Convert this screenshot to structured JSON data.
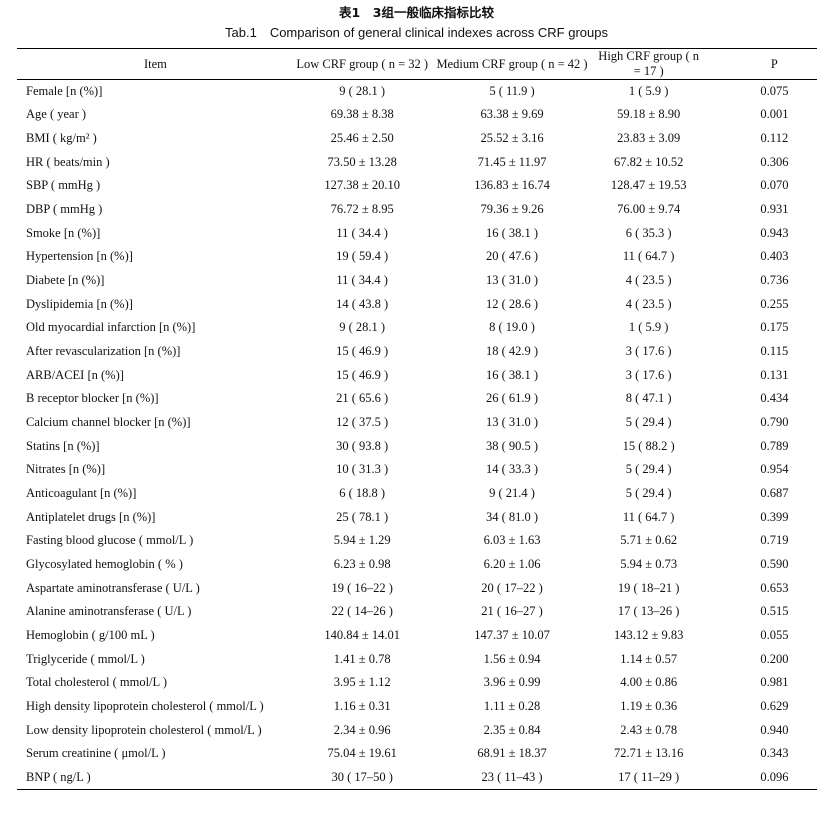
{
  "title_cn": "表1　3组一般临床指标比较",
  "title_en": "Tab.1　Comparison of general clinical indexes across CRF groups",
  "columns": [
    "Item",
    "Low CRF group ( n = 32 )",
    "Medium CRF group ( n = 42 )",
    "High CRF group ( n = 17 )",
    "P"
  ],
  "rows": [
    [
      "Female [n (%)]",
      "9 ( 28.1 )",
      "5 ( 11.9 )",
      "1 ( 5.9 )",
      "0.075"
    ],
    [
      "Age ( year )",
      "69.38 ± 8.38",
      "63.38 ± 9.69",
      "59.18 ± 8.90",
      "0.001"
    ],
    [
      "BMI ( kg/m² )",
      "25.46 ± 2.50",
      "25.52 ± 3.16",
      "23.83 ± 3.09",
      "0.112"
    ],
    [
      "HR ( beats/min )",
      "73.50 ± 13.28",
      "71.45 ± 11.97",
      "67.82 ± 10.52",
      "0.306"
    ],
    [
      "SBP ( mmHg )",
      "127.38 ± 20.10",
      "136.83 ± 16.74",
      "128.47 ± 19.53",
      "0.070"
    ],
    [
      "DBP ( mmHg )",
      "76.72 ± 8.95",
      "79.36 ± 9.26",
      "76.00 ± 9.74",
      "0.931"
    ],
    [
      "Smoke [n (%)]",
      "11 ( 34.4 )",
      "16 ( 38.1 )",
      "6 ( 35.3 )",
      "0.943"
    ],
    [
      "Hypertension [n (%)]",
      "19 ( 59.4 )",
      "20 ( 47.6 )",
      "11 ( 64.7 )",
      "0.403"
    ],
    [
      "Diabete [n (%)]",
      "11 ( 34.4 )",
      "13 ( 31.0 )",
      "4 ( 23.5 )",
      "0.736"
    ],
    [
      "Dyslipidemia [n (%)]",
      "14 ( 43.8 )",
      "12 ( 28.6 )",
      "4 ( 23.5 )",
      "0.255"
    ],
    [
      "Old myocardial infarction [n (%)]",
      "9 ( 28.1 )",
      "8 ( 19.0 )",
      "1 ( 5.9 )",
      "0.175"
    ],
    [
      "After revascularization [n (%)]",
      "15 ( 46.9 )",
      "18 ( 42.9 )",
      "3 ( 17.6 )",
      "0.115"
    ],
    [
      "ARB/ACEI [n (%)]",
      "15 ( 46.9 )",
      "16 ( 38.1 )",
      "3 ( 17.6 )",
      "0.131"
    ],
    [
      "B receptor blocker [n (%)]",
      "21 ( 65.6 )",
      "26 ( 61.9 )",
      "8 ( 47.1 )",
      "0.434"
    ],
    [
      "Calcium channel blocker [n (%)]",
      "12 ( 37.5 )",
      "13 ( 31.0 )",
      "5 ( 29.4 )",
      "0.790"
    ],
    [
      "Statins [n (%)]",
      "30 ( 93.8 )",
      "38 ( 90.5 )",
      "15 ( 88.2 )",
      "0.789"
    ],
    [
      "Nitrates [n (%)]",
      "10 ( 31.3 )",
      "14 ( 33.3 )",
      "5 ( 29.4 )",
      "0.954"
    ],
    [
      "Anticoagulant [n (%)]",
      "6 ( 18.8 )",
      "9 ( 21.4 )",
      "5 ( 29.4 )",
      "0.687"
    ],
    [
      "Antiplatelet drugs [n (%)]",
      "25 ( 78.1 )",
      "34 ( 81.0 )",
      "11 ( 64.7 )",
      "0.399"
    ],
    [
      "Fasting blood glucose ( mmol/L )",
      "5.94 ± 1.29",
      "6.03 ± 1.63",
      "5.71 ± 0.62",
      "0.719"
    ],
    [
      "Glycosylated hemoglobin ( % )",
      "6.23 ± 0.98",
      "6.20 ± 1.06",
      "5.94 ± 0.73",
      "0.590"
    ],
    [
      "Aspartate aminotransferase ( U/L )",
      "19 ( 16–22 )",
      "20 ( 17–22 )",
      "19 ( 18–21 )",
      "0.653"
    ],
    [
      "Alanine aminotransferase ( U/L )",
      "22 ( 14–26 )",
      "21 ( 16–27 )",
      "17 ( 13–26 )",
      "0.515"
    ],
    [
      "Hemoglobin ( g/100 mL )",
      "140.84 ± 14.01",
      "147.37 ± 10.07",
      "143.12 ± 9.83",
      "0.055"
    ],
    [
      "Triglyceride ( mmol/L )",
      "1.41 ± 0.78",
      "1.56 ± 0.94",
      "1.14 ± 0.57",
      "0.200"
    ],
    [
      "Total cholesterol ( mmol/L )",
      "3.95 ± 1.12",
      "3.96 ± 0.99",
      "4.00 ± 0.86",
      "0.981"
    ],
    [
      "High density lipoprotein cholesterol ( mmol/L )",
      "1.16 ± 0.31",
      "1.11 ± 0.28",
      "1.19 ± 0.36",
      "0.629"
    ],
    [
      "Low density lipoprotein cholesterol ( mmol/L )",
      "2.34 ± 0.96",
      "2.35 ± 0.84",
      "2.43 ± 0.78",
      "0.940"
    ],
    [
      "Serum creatinine ( μmol/L )",
      "75.04 ± 19.61",
      "68.91 ± 18.37",
      "72.71 ± 13.16",
      "0.343"
    ],
    [
      "BNP ( ng/L )",
      "30 ( 17–50 )",
      "23 ( 11–43 )",
      "17 ( 11–29 )",
      "0.096"
    ]
  ]
}
